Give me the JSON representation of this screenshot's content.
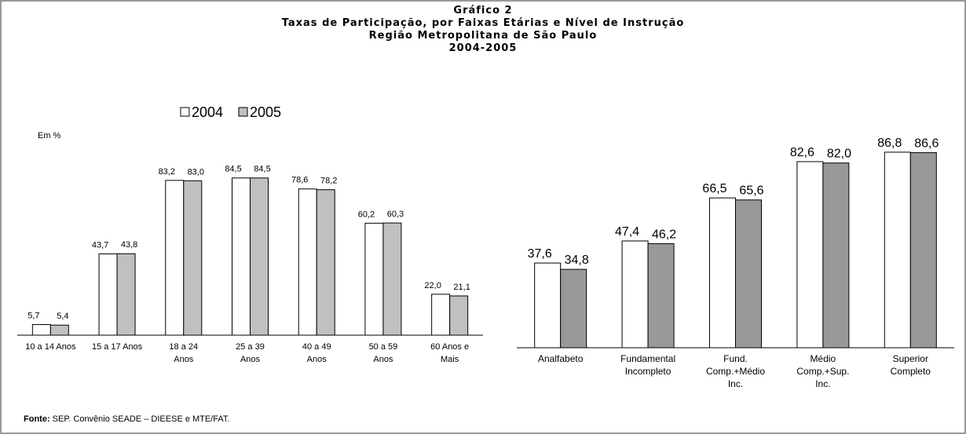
{
  "header": {
    "lines": [
      "Gráfico 2",
      "Taxas de Participação, por Faixas Etárias e Nível de Instrução",
      "Região Metropolitana de São Paulo",
      "2004-2005"
    ]
  },
  "unit": "Em %",
  "source": {
    "label": "Fonte:",
    "text": "SEP. Convênio SEADE – DIEESE e MTE/FAT."
  },
  "chart_data": [
    {
      "type": "bar",
      "categories": [
        "10 a 14 Anos",
        "15 a 17 Anos",
        "18 a 24\nAnos",
        "25 a 39\nAnos",
        "40 a 49\nAnos",
        "50 a 59\nAnos",
        "60 Anos e\nMais"
      ],
      "series": [
        {
          "name": "2004",
          "color": "#ffffff",
          "values": [
            5.7,
            43.7,
            83.2,
            84.5,
            78.6,
            60.2,
            22.0
          ],
          "value_labels": [
            "5,7",
            "43,7",
            "83,2",
            "84,5",
            "78,6",
            "60,2",
            "22,0"
          ]
        },
        {
          "name": "2005",
          "color": "#c0c0c0",
          "values": [
            5.4,
            43.8,
            83.0,
            84.5,
            78.2,
            60.3,
            21.1
          ],
          "value_labels": [
            "5,4",
            "43,8",
            "83,0",
            "84,5",
            "78,2",
            "60,3",
            "21,1"
          ]
        }
      ],
      "ylim": [
        0,
        100
      ],
      "legend": "top"
    },
    {
      "type": "bar",
      "categories": [
        "Analfabeto",
        "Fundamental\nIncompleto",
        "Fund.\nComp.+Médio\nInc.",
        "Médio\nComp.+Sup.\nInc.",
        "Superior\nCompleto"
      ],
      "series": [
        {
          "color": "#ffffff",
          "values": [
            37.6,
            47.4,
            66.5,
            82.6,
            86.8
          ],
          "value_labels": [
            "37,6",
            "47,4",
            "66,5",
            "82,6",
            "86,8"
          ]
        },
        {
          "color": "#999999",
          "values": [
            34.8,
            46.2,
            65.6,
            82.0,
            86.6
          ],
          "value_labels": [
            "34,8",
            "46,2",
            "65,6",
            "82,0",
            "86,6"
          ]
        }
      ],
      "ylim": [
        0,
        100
      ]
    }
  ]
}
